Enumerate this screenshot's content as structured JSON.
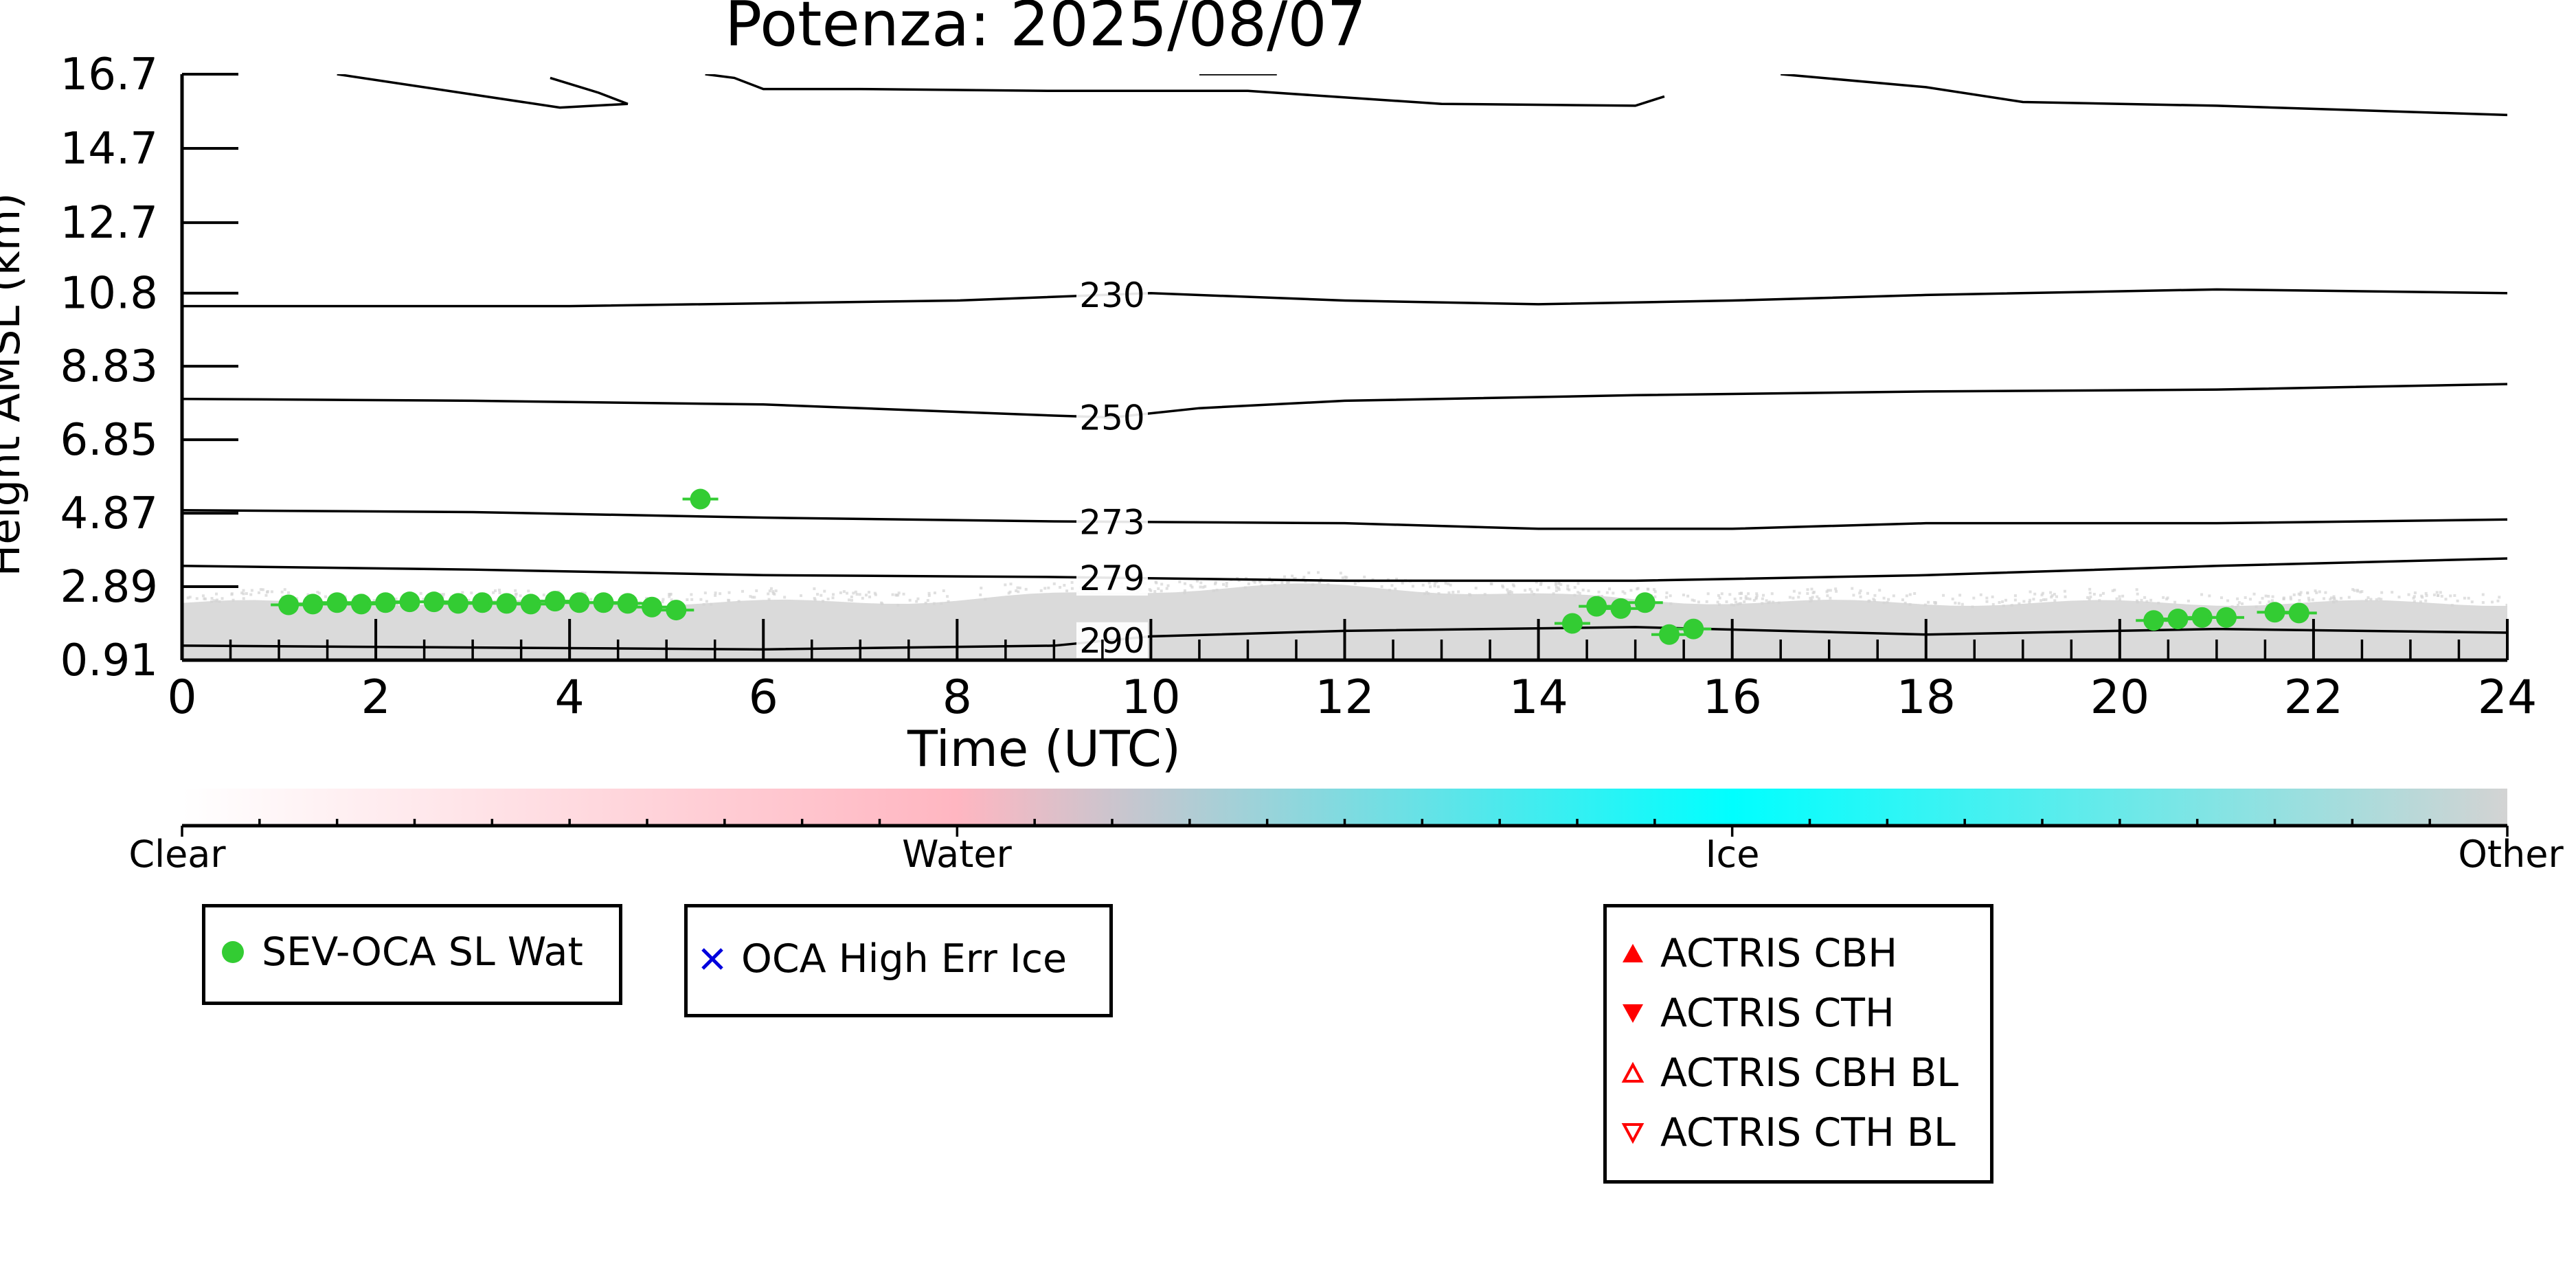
{
  "chart_data": {
    "type": "scatter",
    "title": "Potenza: 2025/08/07",
    "xlabel": "Time (UTC)",
    "ylabel": "Height AMSL (km)",
    "xlim": [
      0,
      24
    ],
    "ylim": [
      0.91,
      16.7
    ],
    "x_ticks": [
      "0",
      "2",
      "4",
      "6",
      "8",
      "10",
      "12",
      "14",
      "16",
      "18",
      "20",
      "22",
      "24"
    ],
    "y_ticks": [
      "0.91",
      "2.89",
      "4.87",
      "6.85",
      "8.83",
      "10.8",
      "12.7",
      "14.7",
      "16.7"
    ],
    "isotherms": [
      {
        "label": "230",
        "label_x": 9.6,
        "points": [
          [
            0,
            10.45
          ],
          [
            4,
            10.45
          ],
          [
            8,
            10.6
          ],
          [
            10,
            10.8
          ],
          [
            12,
            10.6
          ],
          [
            14,
            10.5
          ],
          [
            16,
            10.6
          ],
          [
            18,
            10.75
          ],
          [
            21,
            10.9
          ],
          [
            24,
            10.8
          ]
        ]
      },
      {
        "label": "250",
        "label_x": 9.6,
        "points": [
          [
            0,
            7.95
          ],
          [
            3,
            7.9
          ],
          [
            6,
            7.8
          ],
          [
            9,
            7.5
          ],
          [
            9.6,
            7.45
          ],
          [
            10.5,
            7.7
          ],
          [
            12,
            7.9
          ],
          [
            15,
            8.05
          ],
          [
            18,
            8.15
          ],
          [
            21,
            8.2
          ],
          [
            24,
            8.35
          ]
        ]
      },
      {
        "label": "273",
        "label_x": 9.6,
        "points": [
          [
            0,
            4.95
          ],
          [
            3,
            4.9
          ],
          [
            6,
            4.75
          ],
          [
            9,
            4.65
          ],
          [
            12,
            4.6
          ],
          [
            14,
            4.45
          ],
          [
            16,
            4.45
          ],
          [
            18,
            4.6
          ],
          [
            21,
            4.6
          ],
          [
            24,
            4.7
          ]
        ]
      },
      {
        "label": "279",
        "label_x": 9.6,
        "points": [
          [
            0,
            3.45
          ],
          [
            3,
            3.35
          ],
          [
            6,
            3.2
          ],
          [
            9,
            3.15
          ],
          [
            12,
            3.05
          ],
          [
            15,
            3.05
          ],
          [
            18,
            3.2
          ],
          [
            21,
            3.45
          ],
          [
            24,
            3.65
          ]
        ]
      },
      {
        "label": "290",
        "label_x": 9.6,
        "points": [
          [
            0,
            1.3
          ],
          [
            3,
            1.25
          ],
          [
            6,
            1.2
          ],
          [
            9,
            1.3
          ],
          [
            10,
            1.55
          ],
          [
            12,
            1.7
          ],
          [
            15,
            1.8
          ],
          [
            18,
            1.6
          ],
          [
            21,
            1.75
          ],
          [
            24,
            1.65
          ]
        ]
      }
    ],
    "tropopause_segments": [
      [
        [
          1.6,
          16.7
        ],
        [
          3.9,
          15.8
        ],
        [
          4.6,
          15.9
        ],
        [
          4.3,
          16.2
        ],
        [
          3.8,
          16.6
        ]
      ],
      [
        [
          5.4,
          16.7
        ],
        [
          5.7,
          16.6
        ],
        [
          6,
          16.3
        ],
        [
          7,
          16.3
        ],
        [
          9,
          16.25
        ],
        [
          11,
          16.25
        ],
        [
          13,
          15.9
        ],
        [
          15,
          15.85
        ],
        [
          15.3,
          16.1
        ]
      ],
      [
        [
          10.5,
          16.7
        ],
        [
          11.3,
          16.7
        ]
      ],
      [
        [
          16.5,
          16.7
        ],
        [
          18,
          16.35
        ],
        [
          19,
          15.95
        ],
        [
          21,
          15.85
        ],
        [
          24,
          15.6
        ]
      ]
    ],
    "series": [
      {
        "name": "SEV-OCA SL Wat",
        "marker": "circle",
        "color": "#33cc33",
        "x": [
          1.1,
          1.35,
          1.6,
          1.85,
          2.1,
          2.35,
          2.6,
          2.85,
          3.1,
          3.35,
          3.6,
          3.85,
          4.1,
          4.35,
          4.6,
          4.85,
          5.1,
          5.35,
          14.35,
          14.6,
          14.85,
          15.1,
          15.35,
          15.6,
          20.35,
          20.6,
          20.85,
          21.1,
          21.6,
          21.85
        ],
        "y": [
          2.4,
          2.42,
          2.46,
          2.42,
          2.46,
          2.48,
          2.48,
          2.44,
          2.46,
          2.44,
          2.42,
          2.5,
          2.46,
          2.46,
          2.44,
          2.34,
          2.26,
          5.25,
          1.9,
          2.36,
          2.3,
          2.46,
          1.6,
          1.75,
          1.98,
          2.02,
          2.06,
          2.06,
          2.2,
          2.18
        ]
      },
      {
        "name": "OCA High Err Ice",
        "marker": "x",
        "color": "#0000dd",
        "x": [],
        "y": []
      },
      {
        "name": "ACTRIS CBH",
        "marker": "triangle-up",
        "color": "#ff0000",
        "x": [],
        "y": []
      },
      {
        "name": "ACTRIS CTH",
        "marker": "triangle-down",
        "color": "#ff0000",
        "x": [],
        "y": []
      },
      {
        "name": "ACTRIS CBH BL",
        "marker": "triangle-up-open",
        "color": "#ff0000",
        "x": [],
        "y": []
      },
      {
        "name": "ACTRIS CTH BL",
        "marker": "triangle-down-open",
        "color": "#ff0000",
        "x": [],
        "y": []
      }
    ],
    "colorbar": {
      "labels": [
        "Clear",
        "Water",
        "Ice",
        "Other"
      ],
      "colors": [
        "#ffffff",
        "#ffb6c1",
        "#00ffff",
        "#d3d3d3"
      ]
    },
    "background_class": "Other",
    "background_color": "#d3d3d3",
    "grid": false
  },
  "legends": {
    "box1": [
      "SEV-OCA SL Wat"
    ],
    "box2": [
      "OCA High Err Ice"
    ],
    "box3": [
      "ACTRIS CBH",
      "ACTRIS CTH",
      "ACTRIS CBH BL",
      "ACTRIS CTH BL"
    ]
  }
}
